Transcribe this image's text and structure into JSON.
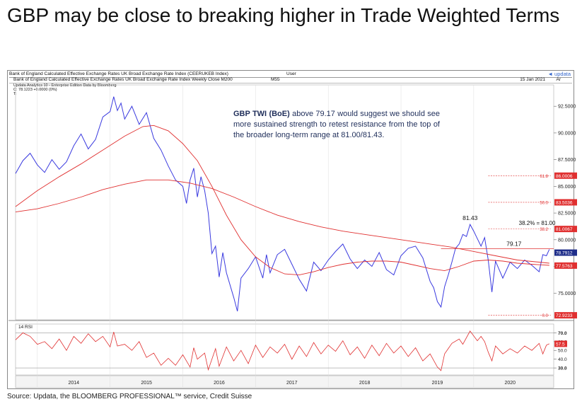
{
  "title": "GBP may be close to breaking higher in Trade Weighted Terms",
  "source": "Source: Updata, the BLOOMBERG PROFESSIONAL™ service, Credit Suisse",
  "header": {
    "line1": "Bank of England Calculated Effective Exchange Rates UK Broad Exchange Rate Index (CEERUKEB Index)",
    "line1_user": "User",
    "updata": "◄ updata",
    "line2": "Bank of England Calculated Effective Exchange Rates UK Broad Exchange Rate Index Weekly Close M200",
    "line2_m55": "M55",
    "date": "15 Jan 2021",
    "ar": "Ar",
    "edition": "Updata Analytics 10 - Enterprise Edition   Data by Bloomberg",
    "close_line": "C: 78.1223  +0.0000 (0%)",
    "t_line": "T:"
  },
  "annotation": {
    "bold": "GBP TWI (BoE)",
    "text": " above 79.17 would suggest we should see more sustained strength to retest resistance from the top of the broader long-term range at 81.00/81.43."
  },
  "chart_data": {
    "type": "line",
    "title": "GBP may be close to breaking higher in Trade Weighted Terms",
    "x_tick_labels": [
      "2014",
      "2015",
      "2016",
      "2017",
      "2018",
      "2019",
      "2020"
    ],
    "x_range": [
      2013.7,
      2021.1
    ],
    "y_ticks": [
      75.0,
      77.5,
      80.0,
      82.5,
      85.0,
      87.5,
      90.0,
      92.5
    ],
    "y_tick_labels": [
      "75.0000",
      "77.5000",
      "80.0000",
      "82.5000",
      "85.0000",
      "87.5000",
      "90.0000",
      "92.5000"
    ],
    "ylim": [
      72.5,
      94.5
    ],
    "series": [
      {
        "color": "#3a3adf",
        "points": [
          [
            2013.7,
            86.2
          ],
          [
            2013.8,
            87.4
          ],
          [
            2013.9,
            88.1
          ],
          [
            2014.0,
            87.0
          ],
          [
            2014.1,
            86.3
          ],
          [
            2014.2,
            87.5
          ],
          [
            2014.3,
            86.6
          ],
          [
            2014.4,
            87.3
          ],
          [
            2014.5,
            88.8
          ],
          [
            2014.6,
            89.9
          ],
          [
            2014.7,
            88.5
          ],
          [
            2014.8,
            89.4
          ],
          [
            2014.9,
            91.5
          ],
          [
            2015.0,
            92.0
          ],
          [
            2015.05,
            93.4
          ],
          [
            2015.1,
            92.1
          ],
          [
            2015.15,
            92.8
          ],
          [
            2015.2,
            91.3
          ],
          [
            2015.3,
            92.5
          ],
          [
            2015.4,
            90.8
          ],
          [
            2015.5,
            91.9
          ],
          [
            2015.6,
            89.5
          ],
          [
            2015.7,
            88.4
          ],
          [
            2015.8,
            86.9
          ],
          [
            2015.9,
            85.6
          ],
          [
            2016.0,
            85.0
          ],
          [
            2016.05,
            83.4
          ],
          [
            2016.1,
            85.6
          ],
          [
            2016.15,
            86.7
          ],
          [
            2016.2,
            84.0
          ],
          [
            2016.25,
            85.9
          ],
          [
            2016.3,
            84.6
          ],
          [
            2016.35,
            82.5
          ],
          [
            2016.4,
            78.7
          ],
          [
            2016.45,
            79.4
          ],
          [
            2016.5,
            76.5
          ],
          [
            2016.55,
            78.8
          ],
          [
            2016.6,
            76.9
          ],
          [
            2016.7,
            74.6
          ],
          [
            2016.75,
            73.3
          ],
          [
            2016.8,
            76.4
          ],
          [
            2016.9,
            77.3
          ],
          [
            2017.0,
            78.4
          ],
          [
            2017.1,
            76.4
          ],
          [
            2017.15,
            78.6
          ],
          [
            2017.2,
            76.9
          ],
          [
            2017.3,
            78.6
          ],
          [
            2017.4,
            79.1
          ],
          [
            2017.5,
            77.7
          ],
          [
            2017.6,
            76.3
          ],
          [
            2017.7,
            75.2
          ],
          [
            2017.8,
            77.9
          ],
          [
            2017.9,
            77.1
          ],
          [
            2018.0,
            78.1
          ],
          [
            2018.1,
            78.9
          ],
          [
            2018.2,
            79.6
          ],
          [
            2018.3,
            78.2
          ],
          [
            2018.4,
            77.3
          ],
          [
            2018.5,
            78.1
          ],
          [
            2018.6,
            77.5
          ],
          [
            2018.7,
            78.8
          ],
          [
            2018.8,
            77.2
          ],
          [
            2018.9,
            76.7
          ],
          [
            2019.0,
            78.5
          ],
          [
            2019.1,
            79.2
          ],
          [
            2019.2,
            79.4
          ],
          [
            2019.3,
            78.3
          ],
          [
            2019.4,
            76.1
          ],
          [
            2019.45,
            75.5
          ],
          [
            2019.5,
            74.2
          ],
          [
            2019.55,
            73.7
          ],
          [
            2019.6,
            75.6
          ],
          [
            2019.65,
            76.7
          ],
          [
            2019.7,
            77.9
          ],
          [
            2019.75,
            79.2
          ],
          [
            2019.8,
            79.6
          ],
          [
            2019.85,
            80.5
          ],
          [
            2019.9,
            80.3
          ],
          [
            2019.95,
            81.43
          ],
          [
            2020.0,
            80.8
          ],
          [
            2020.05,
            80.1
          ],
          [
            2020.1,
            79.4
          ],
          [
            2020.15,
            80.2
          ],
          [
            2020.2,
            78.1
          ],
          [
            2020.25,
            75.1
          ],
          [
            2020.3,
            78.0
          ],
          [
            2020.4,
            76.4
          ],
          [
            2020.5,
            77.9
          ],
          [
            2020.6,
            77.3
          ],
          [
            2020.7,
            78.1
          ],
          [
            2020.8,
            77.6
          ],
          [
            2020.9,
            77.0
          ],
          [
            2020.95,
            78.6
          ],
          [
            2021.0,
            78.5
          ],
          [
            2021.04,
            79.1
          ]
        ]
      },
      {
        "color": "#e03030",
        "points": [
          [
            2013.7,
            82.6
          ],
          [
            2014.0,
            82.9
          ],
          [
            2014.3,
            83.4
          ],
          [
            2014.6,
            84.0
          ],
          [
            2014.9,
            84.7
          ],
          [
            2015.2,
            85.2
          ],
          [
            2015.5,
            85.6
          ],
          [
            2015.8,
            85.6
          ],
          [
            2016.1,
            85.3
          ],
          [
            2016.4,
            84.8
          ],
          [
            2016.7,
            84.0
          ],
          [
            2017.0,
            83.1
          ],
          [
            2017.3,
            82.3
          ],
          [
            2017.6,
            81.7
          ],
          [
            2017.9,
            81.2
          ],
          [
            2018.2,
            80.8
          ],
          [
            2018.5,
            80.5
          ],
          [
            2018.8,
            80.2
          ],
          [
            2019.1,
            79.9
          ],
          [
            2019.4,
            79.6
          ],
          [
            2019.7,
            79.3
          ],
          [
            2020.0,
            78.9
          ],
          [
            2020.3,
            78.5
          ],
          [
            2020.6,
            78.1
          ],
          [
            2020.9,
            77.9
          ],
          [
            2021.04,
            77.8
          ]
        ]
      },
      {
        "color": "#e03030",
        "points": [
          [
            2013.7,
            83.1
          ],
          [
            2014.0,
            84.6
          ],
          [
            2014.3,
            85.9
          ],
          [
            2014.6,
            87.1
          ],
          [
            2014.9,
            88.4
          ],
          [
            2015.2,
            89.7
          ],
          [
            2015.45,
            90.6
          ],
          [
            2015.6,
            90.7
          ],
          [
            2015.8,
            90.2
          ],
          [
            2016.0,
            89.0
          ],
          [
            2016.2,
            87.4
          ],
          [
            2016.4,
            85.0
          ],
          [
            2016.6,
            82.3
          ],
          [
            2016.8,
            80.0
          ],
          [
            2017.0,
            78.4
          ],
          [
            2017.2,
            77.4
          ],
          [
            2017.4,
            76.8
          ],
          [
            2017.6,
            76.7
          ],
          [
            2017.8,
            77.0
          ],
          [
            2018.0,
            77.4
          ],
          [
            2018.2,
            77.7
          ],
          [
            2018.4,
            77.9
          ],
          [
            2018.6,
            78.0
          ],
          [
            2018.8,
            78.0
          ],
          [
            2019.0,
            77.9
          ],
          [
            2019.2,
            77.6
          ],
          [
            2019.4,
            77.3
          ],
          [
            2019.6,
            77.1
          ],
          [
            2019.8,
            77.5
          ],
          [
            2020.0,
            78.0
          ],
          [
            2020.2,
            78.1
          ],
          [
            2020.4,
            78.0
          ],
          [
            2020.6,
            77.8
          ],
          [
            2020.8,
            77.7
          ],
          [
            2021.04,
            77.6
          ]
        ]
      }
    ],
    "horizontal_line": {
      "value": 79.17,
      "x_start": 2019.55,
      "x_end": 2021.1,
      "label": "79.17"
    },
    "fib_levels": [
      {
        "value": 86.0006,
        "label": "61.8",
        "tag": "86.0006"
      },
      {
        "value": 83.5036,
        "label": "50.0",
        "tag": "83.5036"
      },
      {
        "value": 81.0067,
        "label": "38.2",
        "tag": "81.0067"
      },
      {
        "value": 72.9233,
        "label": "0.0",
        "tag": "72.9233"
      }
    ],
    "fib_x_start": 2020.2,
    "fib_text": "38.2% = 81.00",
    "peak_label": {
      "x": 2019.95,
      "y": 81.43,
      "text": "81.43"
    },
    "last_value_tags": [
      {
        "value": 78.7912,
        "tag": "78.7912",
        "color": "#1f2e8a"
      },
      {
        "value": 77.5763,
        "tag": "77.5763",
        "color": "#e03030"
      }
    ]
  },
  "rsi_data": {
    "type": "line",
    "label": "14 RSI",
    "ylim": [
      22,
      80
    ],
    "y_ticks": [
      30,
      40,
      50,
      60,
      70
    ],
    "y_tick_labels": [
      "30.0",
      "40.0",
      "50.0",
      "60.0",
      "70.0"
    ],
    "last_tag": "57.5",
    "last_value": 57.5,
    "guide_lines": [
      70,
      30
    ],
    "color": "#e03030",
    "points": [
      [
        2013.7,
        62
      ],
      [
        2013.8,
        70
      ],
      [
        2013.9,
        66
      ],
      [
        2014.0,
        57
      ],
      [
        2014.1,
        60
      ],
      [
        2014.2,
        52
      ],
      [
        2014.3,
        63
      ],
      [
        2014.4,
        50
      ],
      [
        2014.5,
        66
      ],
      [
        2014.6,
        58
      ],
      [
        2014.7,
        69
      ],
      [
        2014.8,
        60
      ],
      [
        2014.9,
        66
      ],
      [
        2015.0,
        54
      ],
      [
        2015.05,
        71
      ],
      [
        2015.1,
        55
      ],
      [
        2015.2,
        57
      ],
      [
        2015.3,
        50
      ],
      [
        2015.4,
        60
      ],
      [
        2015.5,
        42
      ],
      [
        2015.6,
        47
      ],
      [
        2015.7,
        33
      ],
      [
        2015.8,
        41
      ],
      [
        2015.9,
        33
      ],
      [
        2016.0,
        45
      ],
      [
        2016.1,
        31
      ],
      [
        2016.15,
        53
      ],
      [
        2016.2,
        40
      ],
      [
        2016.3,
        47
      ],
      [
        2016.35,
        28
      ],
      [
        2016.45,
        52
      ],
      [
        2016.5,
        32
      ],
      [
        2016.6,
        54
      ],
      [
        2016.7,
        38
      ],
      [
        2016.8,
        50
      ],
      [
        2016.9,
        35
      ],
      [
        2017.0,
        56
      ],
      [
        2017.1,
        42
      ],
      [
        2017.2,
        54
      ],
      [
        2017.3,
        47
      ],
      [
        2017.4,
        57
      ],
      [
        2017.5,
        40
      ],
      [
        2017.6,
        55
      ],
      [
        2017.7,
        43
      ],
      [
        2017.8,
        59
      ],
      [
        2017.9,
        46
      ],
      [
        2018.0,
        56
      ],
      [
        2018.1,
        49
      ],
      [
        2018.2,
        61
      ],
      [
        2018.3,
        45
      ],
      [
        2018.4,
        54
      ],
      [
        2018.5,
        41
      ],
      [
        2018.6,
        56
      ],
      [
        2018.7,
        44
      ],
      [
        2018.8,
        58
      ],
      [
        2018.9,
        47
      ],
      [
        2019.0,
        55
      ],
      [
        2019.1,
        43
      ],
      [
        2019.2,
        53
      ],
      [
        2019.3,
        38
      ],
      [
        2019.4,
        46
      ],
      [
        2019.5,
        31
      ],
      [
        2019.55,
        27
      ],
      [
        2019.6,
        46
      ],
      [
        2019.7,
        58
      ],
      [
        2019.8,
        63
      ],
      [
        2019.85,
        57
      ],
      [
        2019.95,
        72
      ],
      [
        2020.05,
        61
      ],
      [
        2020.1,
        66
      ],
      [
        2020.15,
        60
      ],
      [
        2020.2,
        48
      ],
      [
        2020.25,
        38
      ],
      [
        2020.3,
        55
      ],
      [
        2020.4,
        46
      ],
      [
        2020.5,
        52
      ],
      [
        2020.6,
        47
      ],
      [
        2020.7,
        55
      ],
      [
        2020.8,
        50
      ],
      [
        2020.9,
        58
      ],
      [
        2020.95,
        46
      ],
      [
        2021.0,
        56
      ],
      [
        2021.04,
        57.5
      ]
    ]
  }
}
